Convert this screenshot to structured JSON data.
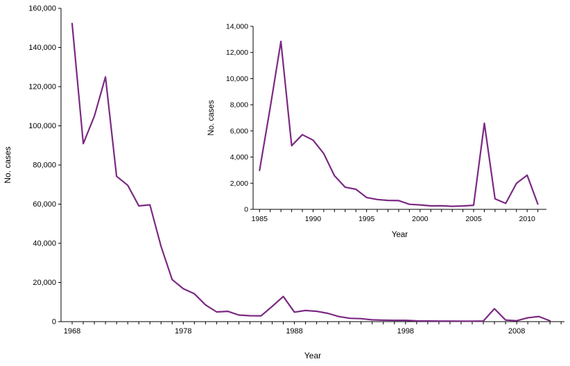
{
  "figure": {
    "background_color": "#ffffff",
    "line_color": "#7b2982",
    "axis_color": "#000000"
  },
  "chart_data": [
    {
      "id": "main",
      "type": "line",
      "title": "",
      "xlabel": "Year",
      "ylabel": "No. cases",
      "legend": "none",
      "grid": false,
      "xlim": [
        1967,
        2012.3
      ],
      "ylim": [
        0,
        160000
      ],
      "y_tick_step": 20000,
      "x_ticks_range": [
        1968,
        2012
      ],
      "x_label_ticks": [
        1968,
        1978,
        1988,
        1998,
        2008
      ],
      "line_color": "#7b2982",
      "x": [
        1968,
        1969,
        1970,
        1971,
        1972,
        1973,
        1974,
        1975,
        1976,
        1977,
        1978,
        1979,
        1980,
        1981,
        1982,
        1983,
        1984,
        1985,
        1986,
        1987,
        1988,
        1989,
        1990,
        1991,
        1992,
        1993,
        1994,
        1995,
        1996,
        1997,
        1998,
        1999,
        2000,
        2001,
        2002,
        2003,
        2004,
        2005,
        2006,
        2007,
        2008,
        2009,
        2010,
        2011
      ],
      "y": [
        152209,
        90918,
        104953,
        124939,
        74215,
        69612,
        59128,
        59647,
        38492,
        21436,
        16817,
        14225,
        8576,
        4941,
        5270,
        3355,
        3021,
        2982,
        7790,
        12848,
        4866,
        5712,
        5292,
        4264,
        2572,
        1692,
        1537,
        906,
        751,
        683,
        666,
        387,
        338,
        266,
        270,
        231,
        258,
        314,
        6584,
        800,
        454,
        1991,
        2612,
        404
      ]
    },
    {
      "id": "inset",
      "type": "line",
      "title": "",
      "xlabel": "Year",
      "ylabel": "No. cases",
      "legend": "none",
      "grid": false,
      "xlim": [
        1984.4,
        2011.8
      ],
      "ylim": [
        0,
        14000
      ],
      "y_tick_step": 2000,
      "x_ticks_range": [
        1985,
        2011
      ],
      "x_label_ticks": [
        1985,
        1990,
        1995,
        2000,
        2005,
        2010
      ],
      "line_color": "#7b2982",
      "x": [
        1985,
        1986,
        1987,
        1988,
        1989,
        1990,
        1991,
        1992,
        1993,
        1994,
        1995,
        1996,
        1997,
        1998,
        1999,
        2000,
        2001,
        2002,
        2003,
        2004,
        2005,
        2006,
        2007,
        2008,
        2009,
        2010,
        2011
      ],
      "y": [
        2982,
        7790,
        12848,
        4866,
        5712,
        5292,
        4264,
        2572,
        1692,
        1537,
        906,
        751,
        683,
        666,
        387,
        338,
        266,
        270,
        231,
        258,
        314,
        6584,
        800,
        454,
        1991,
        2612,
        404
      ]
    }
  ]
}
